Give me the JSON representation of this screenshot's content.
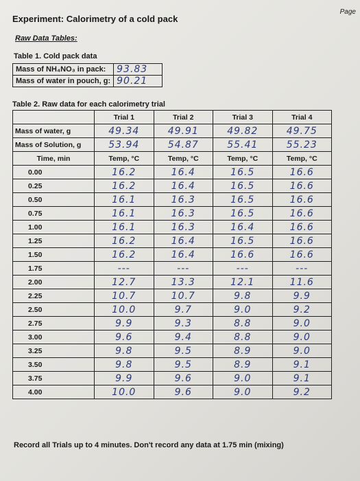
{
  "header": {
    "page_label": "Page",
    "title": "Experiment: Calorimetry of a cold pack",
    "section": "Raw Data Tables:"
  },
  "table1": {
    "caption": "Table 1. Cold pack data",
    "rows": [
      [
        "Mass of NH₄NO₃ in pack:",
        "93.83"
      ],
      [
        "Mass of water in pouch, g:",
        "90.21"
      ]
    ]
  },
  "table2": {
    "caption": "Table 2. Raw data for each calorimetry trial",
    "trials": [
      "Trial 1",
      "Trial 2",
      "Trial 3",
      "Trial 4"
    ],
    "mass_rows": [
      {
        "label": "Mass of water, g",
        "values": [
          "49.34",
          "49.91",
          "49.82",
          "49.75"
        ]
      },
      {
        "label": "Mass of Solution, g",
        "values": [
          "53.94",
          "54.87",
          "55.41",
          "55.23"
        ]
      }
    ],
    "subheaders": [
      "Time, min",
      "Temp, °C",
      "Temp, °C",
      "Temp, °C",
      "Temp, °C"
    ],
    "rows": [
      [
        "0.00",
        "16.2",
        "16.4",
        "16.5",
        "16.6"
      ],
      [
        "0.25",
        "16.2",
        "16.4",
        "16.5",
        "16.6"
      ],
      [
        "0.50",
        "16.1",
        "16.3",
        "16.5",
        "16.6"
      ],
      [
        "0.75",
        "16.1",
        "16.3",
        "16.5",
        "16.6"
      ],
      [
        "1.00",
        "16.1",
        "16.3",
        "16.4",
        "16.6"
      ],
      [
        "1.25",
        "16.2",
        "16.4",
        "16.5",
        "16.6"
      ],
      [
        "1.50",
        "16.2",
        "16.4",
        "16.6",
        "16.6"
      ],
      [
        "1.75",
        "---",
        "---",
        "---",
        "---"
      ],
      [
        "2.00",
        "12.7",
        "13.3",
        "12.1",
        "11.6"
      ],
      [
        "2.25",
        "10.7",
        "10.7",
        "9.8",
        "9.9"
      ],
      [
        "2.50",
        "10.0",
        "9.7",
        "9.0",
        "9.2"
      ],
      [
        "2.75",
        "9.9",
        "9.3",
        "8.8",
        "9.0"
      ],
      [
        "3.00",
        "9.6",
        "9.4",
        "8.8",
        "9.0"
      ],
      [
        "3.25",
        "9.8",
        "9.5",
        "8.9",
        "9.0"
      ],
      [
        "3.50",
        "9.8",
        "9.5",
        "8.9",
        "9.1"
      ],
      [
        "3.75",
        "9.9",
        "9.6",
        "9.0",
        "9.1"
      ],
      [
        "4.00",
        "10.0",
        "9.6",
        "9.0",
        "9.2"
      ]
    ]
  },
  "footer": "Record all Trials up to 4 minutes. Don't record any data at 1.75 min (mixing)"
}
